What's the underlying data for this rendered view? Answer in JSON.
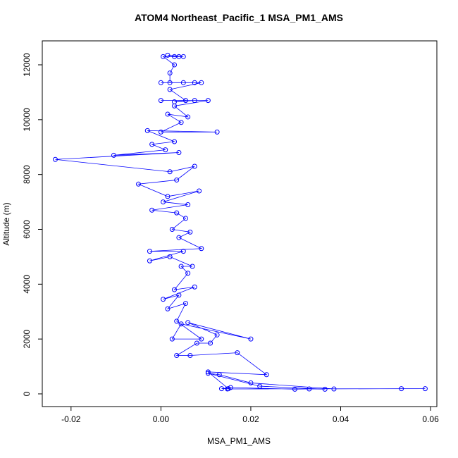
{
  "chart_data": {
    "type": "line",
    "title": "ATOM4 Northeast_Pacific_1 MSA_PM1_AMS",
    "x_label": "MSA_PM1_AMS",
    "y_label": "Altitude (m)",
    "xlim": [
      -0.0264,
      0.0614
    ],
    "ylim": [
      -463,
      12874
    ],
    "xticks": [
      -0.02,
      {
        "value": 0,
        "label": "0.00"
      },
      0.02,
      0.04,
      0.06
    ],
    "yticks": [
      0,
      2000,
      4000,
      6000,
      8000,
      10000,
      12000
    ],
    "series": [
      {
        "color": "#0000ff",
        "x": [
          0.0148,
          0.0588,
          0.0535,
          0.0385,
          0.02,
          0.013,
          0.0105,
          0.022,
          0.0365,
          0.033,
          0.0298,
          0.0155,
          0.0135,
          0.015,
          0.0105,
          0.0235,
          0.017,
          0.0065,
          0.0035,
          0.008,
          0.011,
          0.0125,
          0.006,
          0.02,
          0.0045,
          0.0025,
          0.009,
          0.0035,
          0.0055,
          0.0015,
          0.004,
          0.0005,
          0.0075,
          0.003,
          0.006,
          0.0045,
          0.007,
          0.002,
          -0.0025,
          0.005,
          -0.0025,
          0.009,
          0.004,
          0.0065,
          0.0025,
          0.0055,
          0.0035,
          -0.002,
          0.006,
          0.0005,
          0.0085,
          0.0015,
          -0.005,
          0.0035,
          0.0075,
          0.002,
          -0.0235,
          0.004,
          -0.0105,
          0.001,
          -0.002,
          0.003,
          -0.003,
          0.0125,
          0.0,
          0.0045,
          0.0015,
          0.006,
          0.003,
          0.0105,
          0.0,
          0.0075,
          0.003,
          0.0055,
          0.002,
          0.009,
          0.005,
          0.0,
          0.0075,
          0.002,
          0.002,
          0.003,
          0.0005,
          0.004,
          0.0015,
          0.005,
          0.003
        ],
        "values": [
          180,
          190,
          190,
          180,
          400,
          700,
          750,
          280,
          170,
          180,
          170,
          230,
          190,
          190,
          800,
          700,
          1500,
          1400,
          1400,
          1850,
          1850,
          2150,
          2600,
          2000,
          2550,
          2000,
          2000,
          2650,
          3300,
          3100,
          3600,
          3450,
          3900,
          3800,
          4400,
          4650,
          4650,
          5000,
          4850,
          5200,
          5200,
          5300,
          5700,
          5900,
          6000,
          6400,
          6600,
          6700,
          6900,
          7000,
          7400,
          7200,
          7650,
          7800,
          8300,
          8100,
          8550,
          8800,
          8700,
          8900,
          9100,
          9200,
          9600,
          9550,
          9550,
          9900,
          10200,
          10100,
          10500,
          10700,
          10700,
          10700,
          10650,
          10700,
          11100,
          11350,
          11350,
          11350,
          11350,
          11350,
          11700,
          12000,
          12300,
          12300,
          12350,
          12300,
          12300
        ]
      }
    ]
  }
}
